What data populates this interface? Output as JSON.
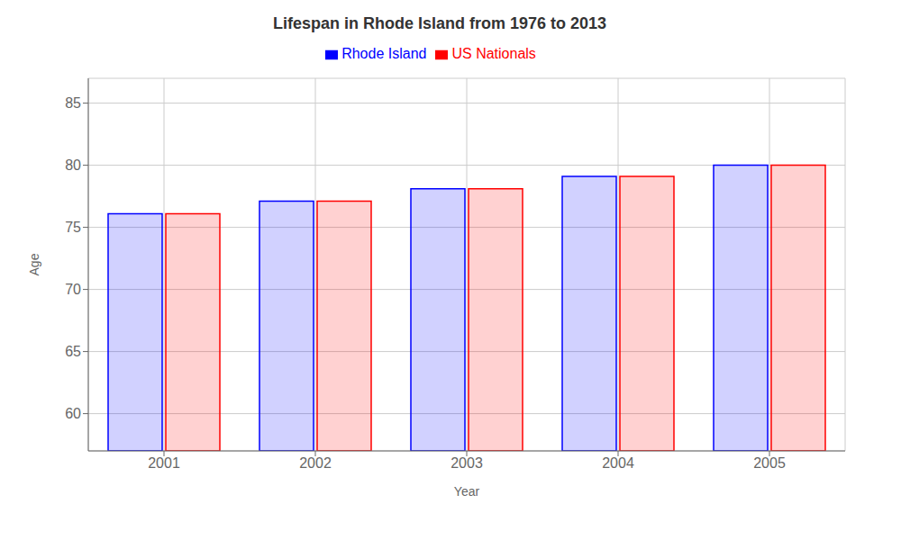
{
  "chart_data": {
    "type": "bar",
    "title": "Lifespan in Rhode Island from 1976 to 2013",
    "xlabel": "Year",
    "ylabel": "Age",
    "categories": [
      "2001",
      "2002",
      "2003",
      "2004",
      "2005"
    ],
    "series": [
      {
        "name": "Rhode Island",
        "color": "#0000ff",
        "values": [
          76.1,
          77.1,
          78.1,
          79.1,
          80.0
        ]
      },
      {
        "name": "US Nationals",
        "color": "#ff0000",
        "values": [
          76.1,
          77.1,
          78.1,
          79.1,
          80.0
        ]
      }
    ],
    "ylim": [
      57,
      87
    ],
    "yticks": [
      60,
      65,
      70,
      75,
      80,
      85
    ],
    "grid": true,
    "legend": "top"
  }
}
